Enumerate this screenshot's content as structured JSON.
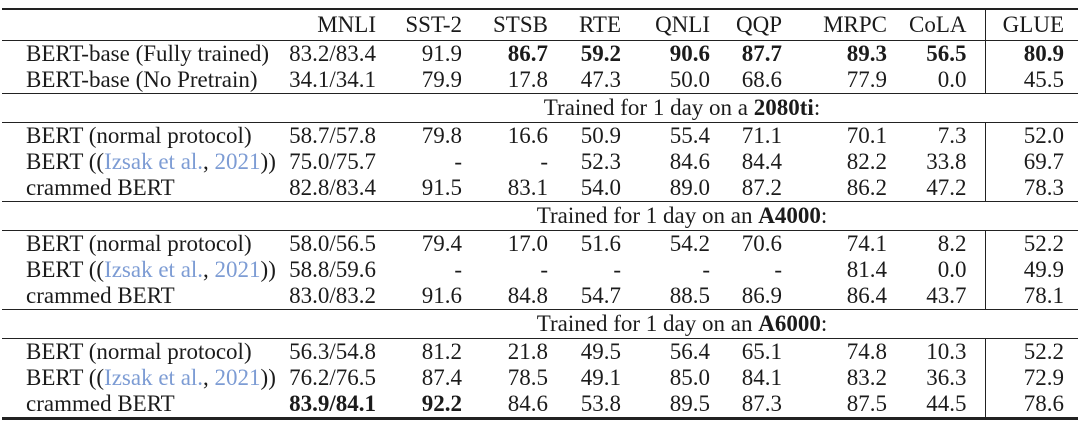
{
  "colors": {
    "text": "#1b1b1b",
    "rule": "#222222",
    "link": "#7d9cd4"
  },
  "table": {
    "col_headers": [
      "MNLI",
      "SST-2",
      "STSB",
      "RTE",
      "QNLI",
      "QQP",
      "MRPC",
      "CoLA",
      "GLUE"
    ],
    "col_keys": [
      "mnli",
      "sst2",
      "stsb",
      "rte",
      "qnli",
      "qqp",
      "mrpc",
      "cola",
      "glue"
    ],
    "sections": [
      {
        "banner": null,
        "rows": [
          {
            "label": "BERT-base (Fully trained)",
            "values": [
              "83.2/83.4",
              "91.9",
              "86.7",
              "59.2",
              "90.6",
              "87.7",
              "89.3",
              "56.5",
              "80.9"
            ],
            "bold": [
              false,
              false,
              true,
              true,
              true,
              true,
              true,
              true,
              true
            ]
          },
          {
            "label": "BERT-base (No Pretrain)",
            "values": [
              "34.1/34.1",
              "79.9",
              "17.8",
              "47.3",
              "50.0",
              "68.6",
              "77.9",
              "0.0",
              "45.5"
            ],
            "bold": [
              false,
              false,
              false,
              false,
              false,
              false,
              false,
              false,
              false
            ]
          }
        ]
      },
      {
        "banner": {
          "prefix": "Trained for 1 day on a ",
          "gpu": "2080ti",
          "suffix": ":"
        },
        "rows": [
          {
            "label": "BERT (normal protocol)",
            "values": [
              "58.7/57.8",
              "79.8",
              "16.6",
              "50.9",
              "55.4",
              "71.1",
              "70.1",
              "7.3",
              "52.0"
            ],
            "bold": [
              false,
              false,
              false,
              false,
              false,
              false,
              false,
              false,
              false
            ]
          },
          {
            "label_cite": {
              "pre": "BERT ((",
              "link1": "Izsak et al.",
              "mid": ", ",
              "link2": "2021",
              "post": "))"
            },
            "values": [
              "75.0/75.7",
              "-",
              "-",
              "52.3",
              "84.6",
              "84.4",
              "82.2",
              "33.8",
              "69.7"
            ],
            "bold": [
              false,
              false,
              false,
              false,
              false,
              false,
              false,
              false,
              false
            ]
          },
          {
            "label": "crammed BERT",
            "values": [
              "82.8/83.4",
              "91.5",
              "83.1",
              "54.0",
              "89.0",
              "87.2",
              "86.2",
              "47.2",
              "78.3"
            ],
            "bold": [
              false,
              false,
              false,
              false,
              false,
              false,
              false,
              false,
              false
            ]
          }
        ]
      },
      {
        "banner": {
          "prefix": "Trained for 1 day on an ",
          "gpu": "A4000",
          "suffix": ":"
        },
        "rows": [
          {
            "label": "BERT (normal protocol)",
            "values": [
              "58.0/56.5",
              "79.4",
              "17.0",
              "51.6",
              "54.2",
              "70.6",
              "74.1",
              "8.2",
              "52.2"
            ],
            "bold": [
              false,
              false,
              false,
              false,
              false,
              false,
              false,
              false,
              false
            ]
          },
          {
            "label_cite": {
              "pre": "BERT ((",
              "link1": "Izsak et al.",
              "mid": ", ",
              "link2": "2021",
              "post": "))"
            },
            "values": [
              "58.8/59.6",
              "-",
              "-",
              "-",
              "-",
              "-",
              "81.4",
              "0.0",
              "49.9"
            ],
            "bold": [
              false,
              false,
              false,
              false,
              false,
              false,
              false,
              false,
              false
            ]
          },
          {
            "label": "crammed BERT",
            "values": [
              "83.0/83.2",
              "91.6",
              "84.8",
              "54.7",
              "88.5",
              "86.9",
              "86.4",
              "43.7",
              "78.1"
            ],
            "bold": [
              false,
              false,
              false,
              false,
              false,
              false,
              false,
              false,
              false
            ]
          }
        ]
      },
      {
        "banner": {
          "prefix": "Trained for 1 day on an ",
          "gpu": "A6000",
          "suffix": ":"
        },
        "rows": [
          {
            "label": "BERT (normal protocol)",
            "values": [
              "56.3/54.8",
              "81.2",
              "21.8",
              "49.5",
              "56.4",
              "65.1",
              "74.8",
              "10.3",
              "52.2"
            ],
            "bold": [
              false,
              false,
              false,
              false,
              false,
              false,
              false,
              false,
              false
            ]
          },
          {
            "label_cite": {
              "pre": "BERT ((",
              "link1": "Izsak et al.",
              "mid": ", ",
              "link2": "2021",
              "post": "))"
            },
            "values": [
              "76.2/76.5",
              "87.4",
              "78.5",
              "49.1",
              "85.0",
              "84.1",
              "83.2",
              "36.3",
              "72.9"
            ],
            "bold": [
              false,
              false,
              false,
              false,
              false,
              false,
              false,
              false,
              false
            ]
          },
          {
            "label": "crammed BERT",
            "values": [
              "83.9/84.1",
              "92.2",
              "84.6",
              "53.8",
              "89.5",
              "87.3",
              "87.5",
              "44.5",
              "78.6"
            ],
            "bold": [
              true,
              true,
              false,
              false,
              false,
              false,
              false,
              false,
              false
            ]
          }
        ]
      }
    ]
  }
}
